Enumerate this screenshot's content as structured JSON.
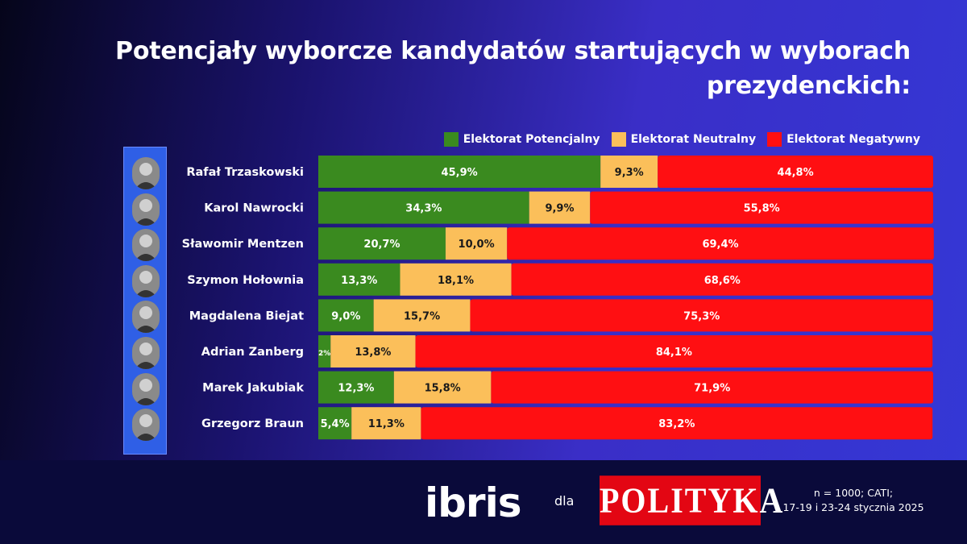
{
  "title": "Potencjały wyborcze kandydatów startujących w wyborach prezydenckich:",
  "legend": [
    {
      "label": "Elektorat Potencjalny",
      "color": "#3a8a1f"
    },
    {
      "label": "Elektorat Neutralny",
      "color": "#fbbf5a"
    },
    {
      "label": "Elektorat Negatywny",
      "color": "#ff0f12"
    }
  ],
  "chart_data": {
    "type": "bar",
    "orientation": "horizontal",
    "stacked": true,
    "categories": [
      "Rafał Trzaskowski",
      "Karol Nawrocki",
      "Sławomir Mentzen",
      "Szymon Hołownia",
      "Magdalena Biejat",
      "Adrian Zanberg",
      "Marek Jakubiak",
      "Grzegorz Braun"
    ],
    "series": [
      {
        "name": "Elektorat Potencjalny",
        "color": "#3a8a1f",
        "values": [
          45.9,
          34.3,
          20.7,
          13.3,
          9.0,
          2.0,
          12.3,
          5.4
        ],
        "labels": [
          "45,9%",
          "34,3%",
          "20,7%",
          "13,3%",
          "9,0%",
          "2%",
          "12,3%",
          "5,4%"
        ]
      },
      {
        "name": "Elektorat Neutralny",
        "color": "#fbbf5a",
        "values": [
          9.3,
          9.9,
          10.0,
          18.1,
          15.7,
          13.8,
          15.8,
          11.3
        ],
        "labels": [
          "9,3%",
          "9,9%",
          "10,0%",
          "18,1%",
          "15,7%",
          "13,8%",
          "15,8%",
          "11,3%"
        ]
      },
      {
        "name": "Elektorat Negatywny",
        "color": "#ff0f12",
        "values": [
          44.8,
          55.8,
          69.4,
          68.6,
          75.3,
          84.1,
          71.9,
          83.2
        ],
        "labels": [
          "44,8%",
          "55,8%",
          "69,4%",
          "68,6%",
          "75,3%",
          "84,1%",
          "71,9%",
          "83,2%"
        ]
      }
    ],
    "xlim": [
      0,
      100
    ],
    "legend_position": "top-right"
  },
  "footer": {
    "logo_left": "ibris",
    "connector": "dla",
    "logo_right": "POLITYKA",
    "note_line1": "n = 1000; CATI;",
    "note_line2": "17-19 i 23-24 stycznia 2025"
  }
}
